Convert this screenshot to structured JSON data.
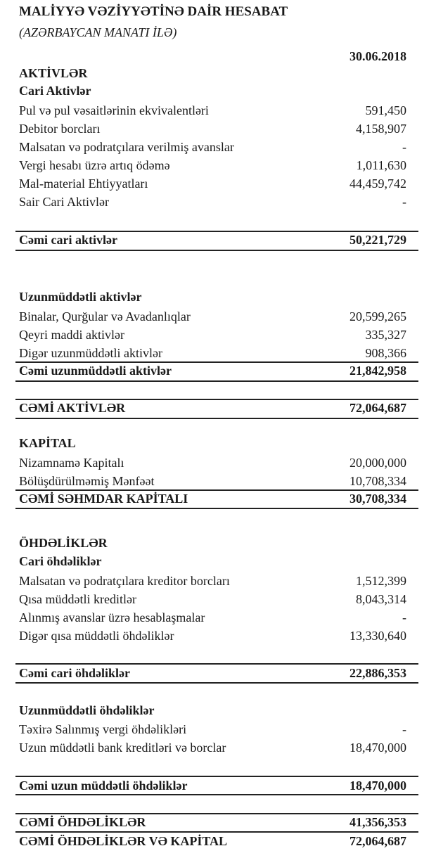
{
  "title": "MALİYYƏ VƏZİYYƏTİNƏ DAİR HESABAT",
  "subtitle": "(AZƏRBAYCAN MANATI İLƏ)",
  "date": "30.06.2018",
  "assets": {
    "heading": "AKTİVLƏR",
    "current": {
      "heading": "Cari Aktivlər",
      "items": [
        {
          "label": "Pul və pul vəsaitlərinin ekvivalentləri",
          "value": "591,450"
        },
        {
          "label": "Debitor borcları",
          "value": "4,158,907"
        },
        {
          "label": "Malsatan və podratçılara verilmiş avanslar",
          "value": "-"
        },
        {
          "label": "Vergi hesabı üzrə artıq ödəmə",
          "value": "1,011,630"
        },
        {
          "label": "Mal-material Ehtiyyatları",
          "value": "44,459,742"
        },
        {
          "label": "Sair Cari Aktivlər",
          "value": "-"
        }
      ],
      "total_label": "Cəmi cari aktivlər",
      "total": "50,221,729"
    },
    "noncurrent": {
      "heading": "Uzunmüddətli aktivlər",
      "items": [
        {
          "label": "Binalar, Qurğular və Avadanlıqlar",
          "value": "20,599,265"
        },
        {
          "label": "Qeyri maddi aktivlər",
          "value": "335,327"
        },
        {
          "label": "Digər uzunmüddətli aktivlər",
          "value": "908,366"
        }
      ],
      "total_label": "Cəmi uzunmüddətli aktivlər",
      "total": "21,842,958"
    },
    "total_label": "CƏMİ AKTİVLƏR",
    "total": "72,064,687"
  },
  "equity": {
    "heading": "KAPİTAL",
    "items": [
      {
        "label": "Nizamnamə Kapitalı",
        "value": "20,000,000"
      },
      {
        "label": "Bölüşdürülməmiş Mənfəət",
        "value": "10,708,334"
      }
    ],
    "total_label": "CƏMİ SƏHMDAR KAPİTALI",
    "total": "30,708,334"
  },
  "liabilities": {
    "heading": "ÖHDƏLİKLƏR",
    "current": {
      "heading": "Cari öhdəliklər",
      "items": [
        {
          "label": "Malsatan və podratçılara kreditor borcları",
          "value": "1,512,399"
        },
        {
          "label": "Qısa müddətli kreditlər",
          "value": "8,043,314"
        },
        {
          "label": "Alınmış avanslar üzrə hesablaşmalar",
          "value": "-"
        },
        {
          "label": "Digər qısa müddətli öhdəliklər",
          "value": "13,330,640"
        }
      ],
      "total_label": "Cəmi cari öhdəliklər",
      "total": "22,886,353"
    },
    "noncurrent": {
      "heading": "Uzunmüddətli öhdəliklər",
      "items": [
        {
          "label": "Təxirə Salınmış vergi öhdəlikləri",
          "value": "-"
        },
        {
          "label": "Uzun müddətli bank kreditləri və borclar",
          "value": "18,470,000"
        }
      ],
      "total_label": "Cəmi uzun müddətli öhdəliklər",
      "total": "18,470,000"
    },
    "total_label": "CƏMİ ÖHDƏLİKLƏR",
    "total": "41,356,353"
  },
  "grand_total_label": "CƏMİ ÖHDƏLİKLƏR VƏ KAPİTAL",
  "grand_total": "72,064,687"
}
